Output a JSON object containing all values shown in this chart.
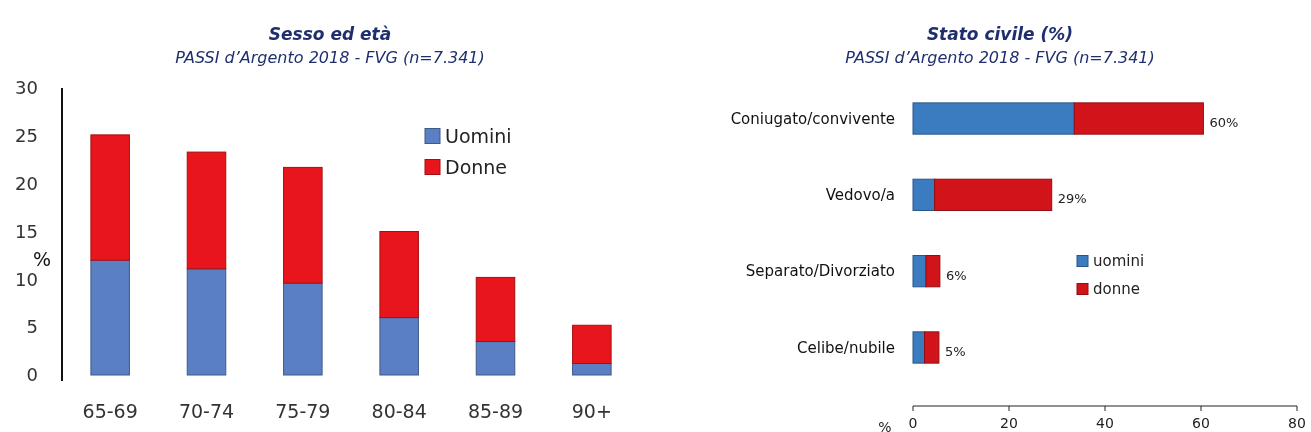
{
  "chart_data": [
    {
      "type": "bar",
      "title": "Sesso ed età",
      "subtitle": "PASSI d’Argento 2018 - FVG (n=7.341)",
      "ylabel": "%",
      "categories": [
        "65-69",
        "70-74",
        "75-79",
        "80-84",
        "85-89",
        "90+"
      ],
      "stacked": true,
      "ylim": [
        0,
        30
      ],
      "yticks": [
        0,
        5,
        10,
        15,
        20,
        25,
        30
      ],
      "legend": "top right",
      "series": [
        {
          "name": "Uomini",
          "color": "#5a7fc2",
          "values": [
            12.0,
            11.1,
            9.6,
            6.0,
            3.5,
            1.2
          ]
        },
        {
          "name": "Donne",
          "color": "#e8161c",
          "values": [
            13.1,
            12.2,
            12.1,
            9.0,
            6.7,
            4.0
          ]
        }
      ]
    },
    {
      "type": "bar",
      "title": "Stato civile (%)",
      "subtitle": "PASSI d’Argento 2018 - FVG (n=7.341)",
      "xlabel": "%",
      "orientation": "horizontal",
      "stacked": true,
      "categories": [
        "Coniugato/convivente",
        "Vedovo/a",
        "Separato/Divorziato",
        "Celibe/nubile"
      ],
      "xlim": [
        0,
        80
      ],
      "xticks": [
        0,
        20,
        40,
        60,
        80
      ],
      "legend": "right",
      "totals": [
        "60%",
        "29%",
        "6%",
        "5%"
      ],
      "series": [
        {
          "name": "uomini",
          "color": "#3b7cc0",
          "values": [
            33.6,
            4.5,
            2.7,
            2.4
          ]
        },
        {
          "name": "donne",
          "color": "#d0141a",
          "values": [
            26.9,
            24.4,
            2.9,
            3.0
          ]
        }
      ]
    }
  ]
}
